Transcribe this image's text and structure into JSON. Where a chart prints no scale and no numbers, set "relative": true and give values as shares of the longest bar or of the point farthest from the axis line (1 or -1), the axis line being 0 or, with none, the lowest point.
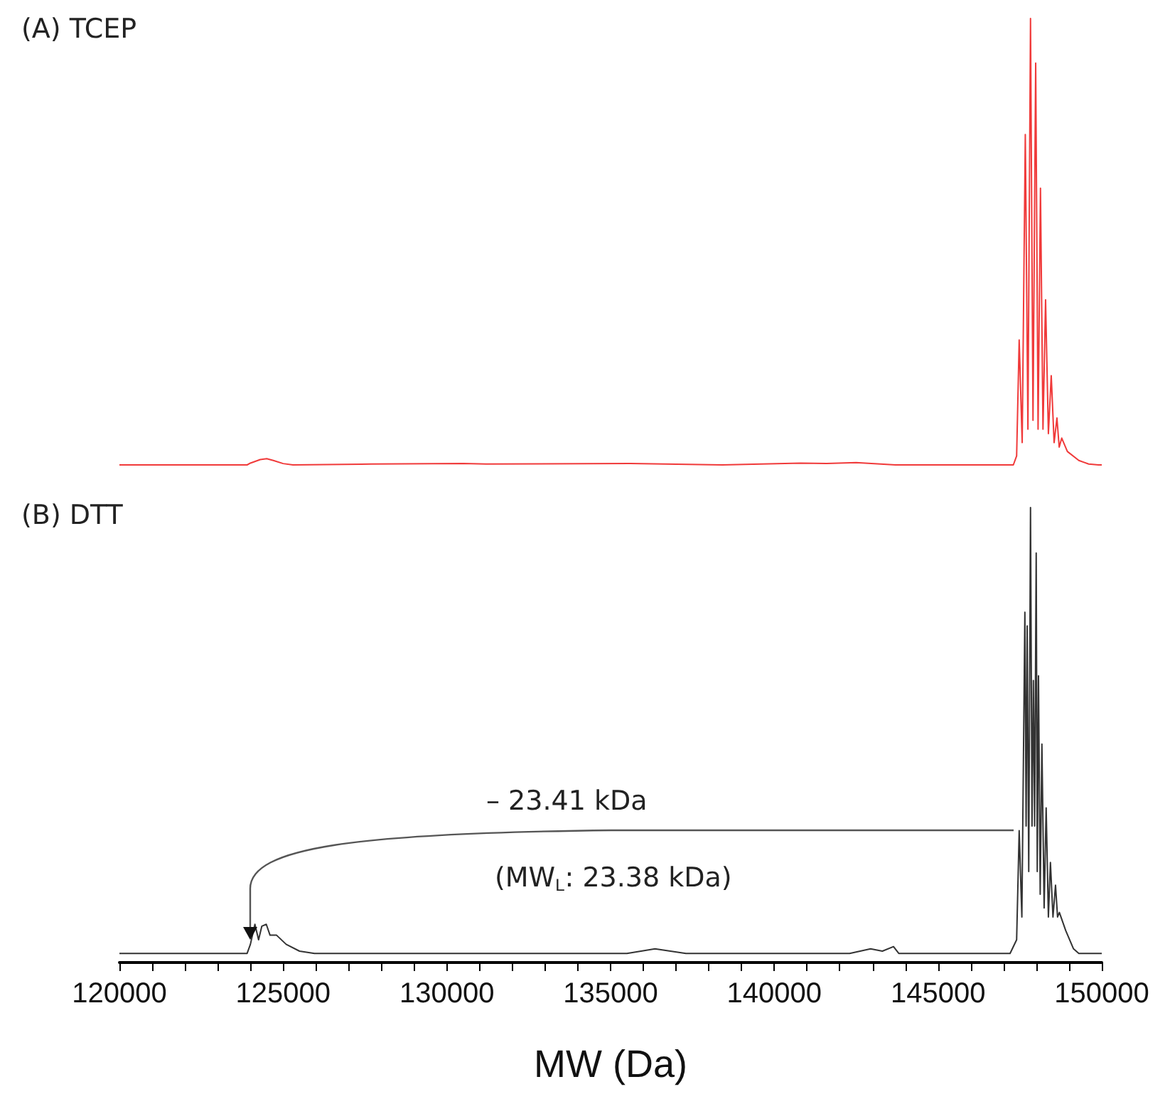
{
  "chart_data": [
    {
      "type": "line",
      "title": "(A) TCEP",
      "relative": true,
      "color": "#f03a3a",
      "xlim": [
        120000,
        150000
      ],
      "tick_labels": false,
      "grid": false,
      "marker": "none",
      "x": [
        120000,
        123900,
        124000,
        124300,
        124500,
        124700,
        125000,
        125300,
        127700,
        130500,
        131200,
        135600,
        138400,
        140800,
        141600,
        142500,
        143700,
        147300,
        147400,
        147478,
        147570,
        147665,
        147745,
        147824,
        147900,
        147982,
        148055,
        148128,
        148205,
        148284,
        148370,
        148457,
        148545,
        148631,
        148700,
        148778,
        148950,
        149300,
        149600,
        149900,
        150000
      ],
      "values": [
        0,
        0,
        0.004,
        0.012,
        0.014,
        0.01,
        0.003,
        0,
        0.002,
        0.003,
        0.002,
        0.003,
        0,
        0.004,
        0.003,
        0.005,
        0,
        0,
        0.02,
        0.28,
        0.05,
        0.74,
        0.08,
        1.0,
        0.1,
        0.9,
        0.08,
        0.62,
        0.08,
        0.37,
        0.07,
        0.2,
        0.05,
        0.105,
        0.04,
        0.06,
        0.03,
        0.01,
        0.002,
        0,
        0
      ]
    },
    {
      "type": "line",
      "title": "(B) DTT",
      "relative": true,
      "color": "#333333",
      "xlabel": "MW (Da)",
      "xlim": [
        120000,
        150000
      ],
      "tick_labels": "x",
      "grid": false,
      "marker": "none",
      "xticks": [
        120000,
        {
          "value": 121000,
          "label": null
        },
        {
          "value": 122000,
          "label": null
        },
        {
          "value": 123000,
          "label": null
        },
        {
          "value": 124000,
          "label": null
        },
        125000,
        {
          "value": 126000,
          "label": null
        },
        {
          "value": 127000,
          "label": null
        },
        {
          "value": 128000,
          "label": null
        },
        {
          "value": 129000,
          "label": null
        },
        130000,
        {
          "value": 131000,
          "label": null
        },
        {
          "value": 132000,
          "label": null
        },
        {
          "value": 133000,
          "label": null
        },
        {
          "value": 134000,
          "label": null
        },
        135000,
        {
          "value": 136000,
          "label": null
        },
        {
          "value": 137000,
          "label": null
        },
        {
          "value": 138000,
          "label": null
        },
        {
          "value": 139000,
          "label": null
        },
        140000,
        {
          "value": 141000,
          "label": null
        },
        {
          "value": 142000,
          "label": null
        },
        {
          "value": 143000,
          "label": null
        },
        {
          "value": 144000,
          "label": null
        },
        145000,
        {
          "value": 146000,
          "label": null
        },
        {
          "value": 147000,
          "label": null
        },
        {
          "value": 148000,
          "label": null
        },
        {
          "value": 149000,
          "label": null
        },
        150000
      ],
      "annotations": [
        "– 23.41 kDa",
        "(MW$_{L}$: 23.38 kDa)"
      ],
      "x": [
        120000,
        123900,
        124000,
        124138,
        124250,
        124350,
        124485,
        124600,
        124800,
        125091,
        125500,
        125957,
        135500,
        136357,
        137300,
        142300,
        142940,
        143300,
        143640,
        143800,
        147200,
        147400,
        147478,
        147560,
        147652,
        147690,
        147722,
        147770,
        147824,
        147870,
        147911,
        147950,
        147998,
        148030,
        148068,
        148120,
        148172,
        148240,
        148302,
        148370,
        148432,
        148510,
        148588,
        148650,
        148706,
        148900,
        149138,
        149300,
        150000
      ],
      "values": [
        0.02,
        0.02,
        0.04,
        0.084,
        0.05,
        0.08,
        0.084,
        0.06,
        0.06,
        0.04,
        0.025,
        0.02,
        0.02,
        0.03,
        0.02,
        0.02,
        0.03,
        0.025,
        0.035,
        0.02,
        0.02,
        0.05,
        0.29,
        0.1,
        0.77,
        0.3,
        0.74,
        0.2,
        1.0,
        0.3,
        0.62,
        0.3,
        0.9,
        0.2,
        0.63,
        0.15,
        0.48,
        0.12,
        0.34,
        0.1,
        0.22,
        0.1,
        0.17,
        0.1,
        0.11,
        0.07,
        0.03,
        0.02,
        0.02
      ]
    }
  ]
}
